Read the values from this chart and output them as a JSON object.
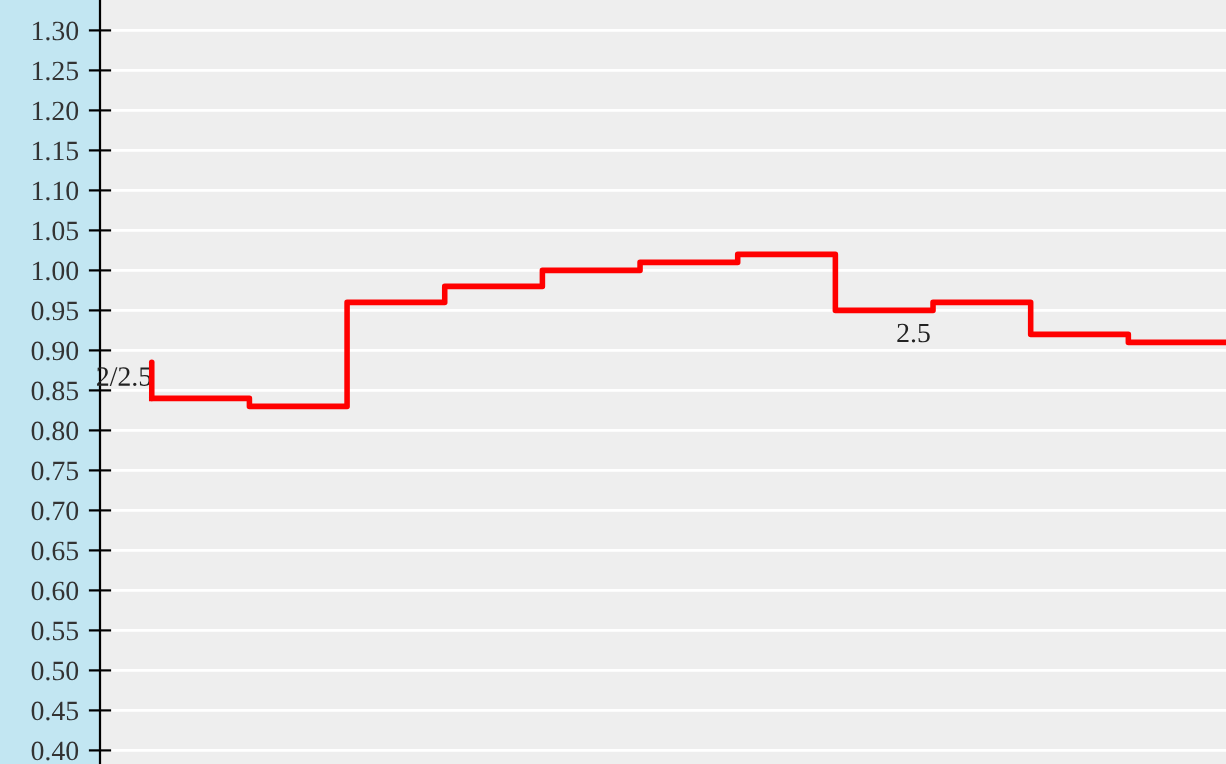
{
  "chart_data": {
    "type": "step",
    "categories": [
      null,
      null,
      null,
      null,
      null,
      null,
      null,
      null,
      null,
      null,
      null,
      null
    ],
    "series": [
      {
        "color": "#ff0000",
        "values": [
          0.84,
          0.83,
          0.96,
          0.98,
          1.0,
          1.01,
          1.02,
          0.95,
          0.96,
          0.92,
          0.91,
          0.91
        ]
      }
    ],
    "ylim": [
      0.383,
      1.338
    ],
    "yticks": [
      {
        "value": 0.4,
        "label": "0.40"
      },
      {
        "value": 0.45,
        "label": "0.45"
      },
      {
        "value": 0.5,
        "label": "0.50"
      },
      {
        "value": 0.55,
        "label": "0.55"
      },
      {
        "value": 0.6,
        "label": "0.60"
      },
      {
        "value": 0.65,
        "label": "0.65"
      },
      {
        "value": 0.7,
        "label": "0.70"
      },
      {
        "value": 0.75,
        "label": "0.75"
      },
      {
        "value": 0.8,
        "label": "0.80"
      },
      {
        "value": 0.85,
        "label": "0.85"
      },
      {
        "value": 0.9,
        "label": "0.90"
      },
      {
        "value": 0.95,
        "label": "0.95"
      },
      {
        "value": 1.0,
        "label": "1.00"
      },
      {
        "value": 1.05,
        "label": "1.05"
      },
      {
        "value": 1.1,
        "label": "1.10"
      },
      {
        "value": 1.15,
        "label": "1.15"
      },
      {
        "value": 1.2,
        "label": "1.20"
      },
      {
        "value": 1.25,
        "label": "1.25"
      },
      {
        "value": 1.3,
        "label": "1.30"
      }
    ],
    "tick_labels": "y",
    "grid": "y",
    "annotations": [
      "2/2.5",
      "2.5"
    ]
  }
}
